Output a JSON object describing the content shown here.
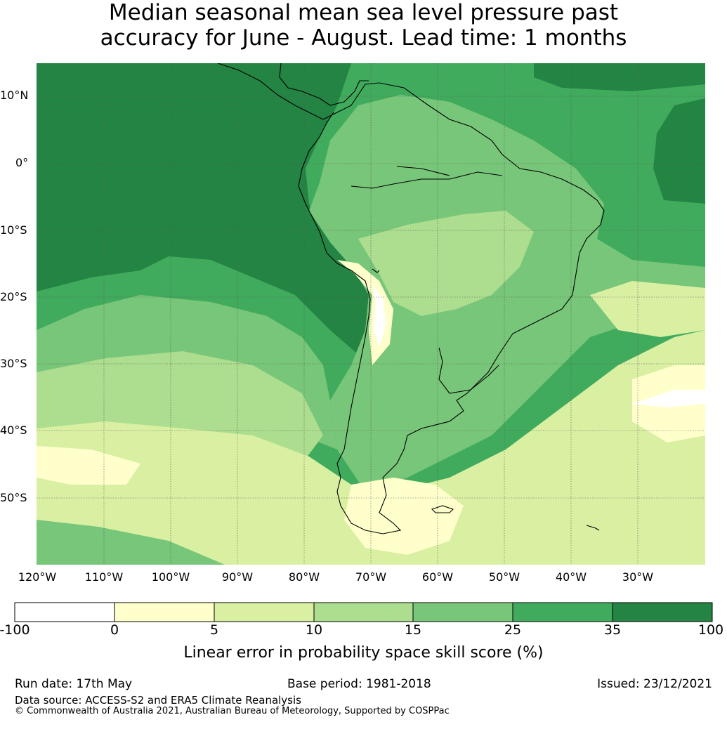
{
  "title_line1": "Median seasonal mean sea level pressure past",
  "title_line2": "accuracy for June - August. Lead time: 1 months",
  "lat_labels": [
    "10°N",
    "0°",
    "10°S",
    "20°S",
    "30°S",
    "40°S",
    "50°S"
  ],
  "lon_labels": [
    "120°W",
    "110°W",
    "100°W",
    "90°W",
    "80°W",
    "70°W",
    "60°W",
    "50°W",
    "40°W",
    "30°W"
  ],
  "colorbar": {
    "ticks": [
      "-100",
      "0",
      "5",
      "10",
      "15",
      "25",
      "35",
      "100"
    ],
    "colors": [
      "#ffffff",
      "#ffffcc",
      "#d9f0a3",
      "#addd8e",
      "#78c679",
      "#41ab5d",
      "#238443"
    ],
    "title": "Linear error in probability space skill score (%)"
  },
  "footer": {
    "run_date": "Run date: 17th May",
    "base_period": "Base period: 1981-2018",
    "issued": "Issued: 23/12/2021",
    "data_source": "Data source: ACCESS-S2 and ERA5 Climate Reanalysis",
    "copyright": "© Commonwealth of Australia 2021, Australian Bureau of Meteorology, Supported by COSPPac"
  }
}
